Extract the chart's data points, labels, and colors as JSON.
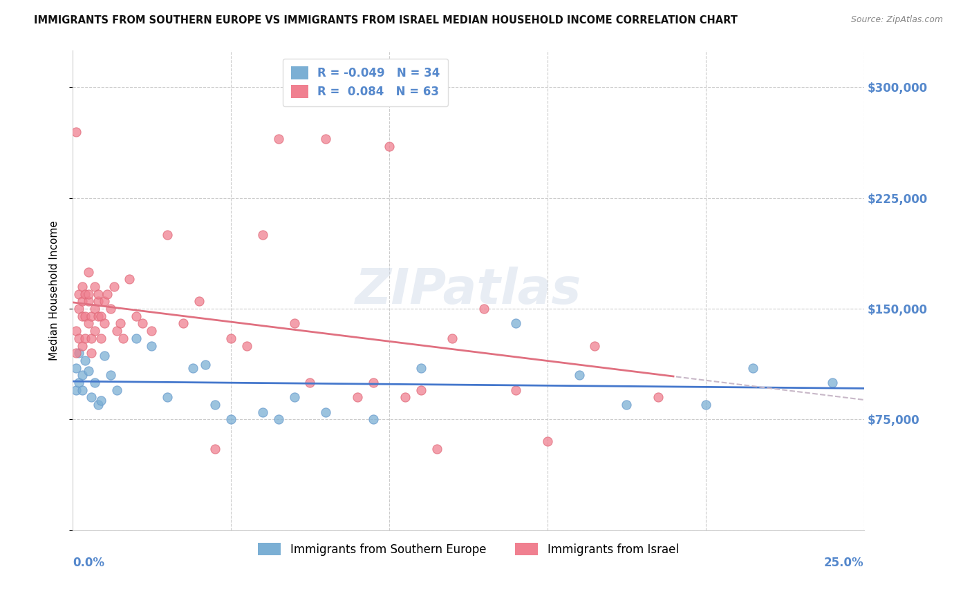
{
  "title": "IMMIGRANTS FROM SOUTHERN EUROPE VS IMMIGRANTS FROM ISRAEL MEDIAN HOUSEHOLD INCOME CORRELATION CHART",
  "source": "Source: ZipAtlas.com",
  "ylabel": "Median Household Income",
  "yticks": [
    0,
    75000,
    150000,
    225000,
    300000
  ],
  "ytick_labels": [
    "",
    "$75,000",
    "$150,000",
    "$225,000",
    "$300,000"
  ],
  "xlim": [
    0.0,
    0.25
  ],
  "ylim": [
    0,
    325000
  ],
  "legend_label1": "Immigrants from Southern Europe",
  "legend_label2": "Immigrants from Israel",
  "watermark": "ZIPatlas",
  "blue_scatter_x": [
    0.001,
    0.001,
    0.002,
    0.002,
    0.003,
    0.003,
    0.004,
    0.005,
    0.006,
    0.007,
    0.008,
    0.009,
    0.01,
    0.012,
    0.014,
    0.02,
    0.025,
    0.03,
    0.038,
    0.042,
    0.045,
    0.05,
    0.06,
    0.065,
    0.07,
    0.08,
    0.095,
    0.11,
    0.14,
    0.16,
    0.175,
    0.2,
    0.215,
    0.24
  ],
  "blue_scatter_y": [
    95000,
    110000,
    100000,
    120000,
    105000,
    95000,
    115000,
    108000,
    90000,
    100000,
    85000,
    88000,
    118000,
    105000,
    95000,
    130000,
    125000,
    90000,
    110000,
    112000,
    85000,
    75000,
    80000,
    75000,
    90000,
    80000,
    75000,
    110000,
    140000,
    105000,
    85000,
    85000,
    110000,
    100000
  ],
  "pink_scatter_x": [
    0.001,
    0.001,
    0.001,
    0.002,
    0.002,
    0.002,
    0.003,
    0.003,
    0.003,
    0.003,
    0.004,
    0.004,
    0.004,
    0.005,
    0.005,
    0.005,
    0.005,
    0.006,
    0.006,
    0.006,
    0.007,
    0.007,
    0.007,
    0.008,
    0.008,
    0.008,
    0.009,
    0.009,
    0.01,
    0.01,
    0.011,
    0.012,
    0.013,
    0.014,
    0.015,
    0.016,
    0.018,
    0.02,
    0.022,
    0.025,
    0.03,
    0.035,
    0.04,
    0.045,
    0.05,
    0.055,
    0.06,
    0.065,
    0.07,
    0.075,
    0.08,
    0.09,
    0.095,
    0.1,
    0.105,
    0.11,
    0.115,
    0.12,
    0.13,
    0.14,
    0.15,
    0.165,
    0.185
  ],
  "pink_scatter_y": [
    270000,
    135000,
    120000,
    160000,
    150000,
    130000,
    155000,
    145000,
    165000,
    125000,
    145000,
    160000,
    130000,
    155000,
    140000,
    160000,
    175000,
    145000,
    130000,
    120000,
    150000,
    165000,
    135000,
    155000,
    145000,
    160000,
    130000,
    145000,
    155000,
    140000,
    160000,
    150000,
    165000,
    135000,
    140000,
    130000,
    170000,
    145000,
    140000,
    135000,
    200000,
    140000,
    155000,
    55000,
    130000,
    125000,
    200000,
    265000,
    140000,
    100000,
    265000,
    90000,
    100000,
    260000,
    90000,
    95000,
    55000,
    130000,
    150000,
    95000,
    60000,
    125000,
    90000
  ],
  "blue_line_color": "#4477cc",
  "pink_line_color": "#e07080",
  "pink_line_dashed_color": "#c8b8c8",
  "dot_blue_color": "#7bafd4",
  "dot_pink_color": "#f08090",
  "dot_blue_edge": "#6699cc",
  "dot_pink_edge": "#e06878",
  "axis_label_color": "#5588cc",
  "grid_color": "#cccccc",
  "title_color": "#111111",
  "source_color": "#888888",
  "legend_text_color": "#5588cc"
}
